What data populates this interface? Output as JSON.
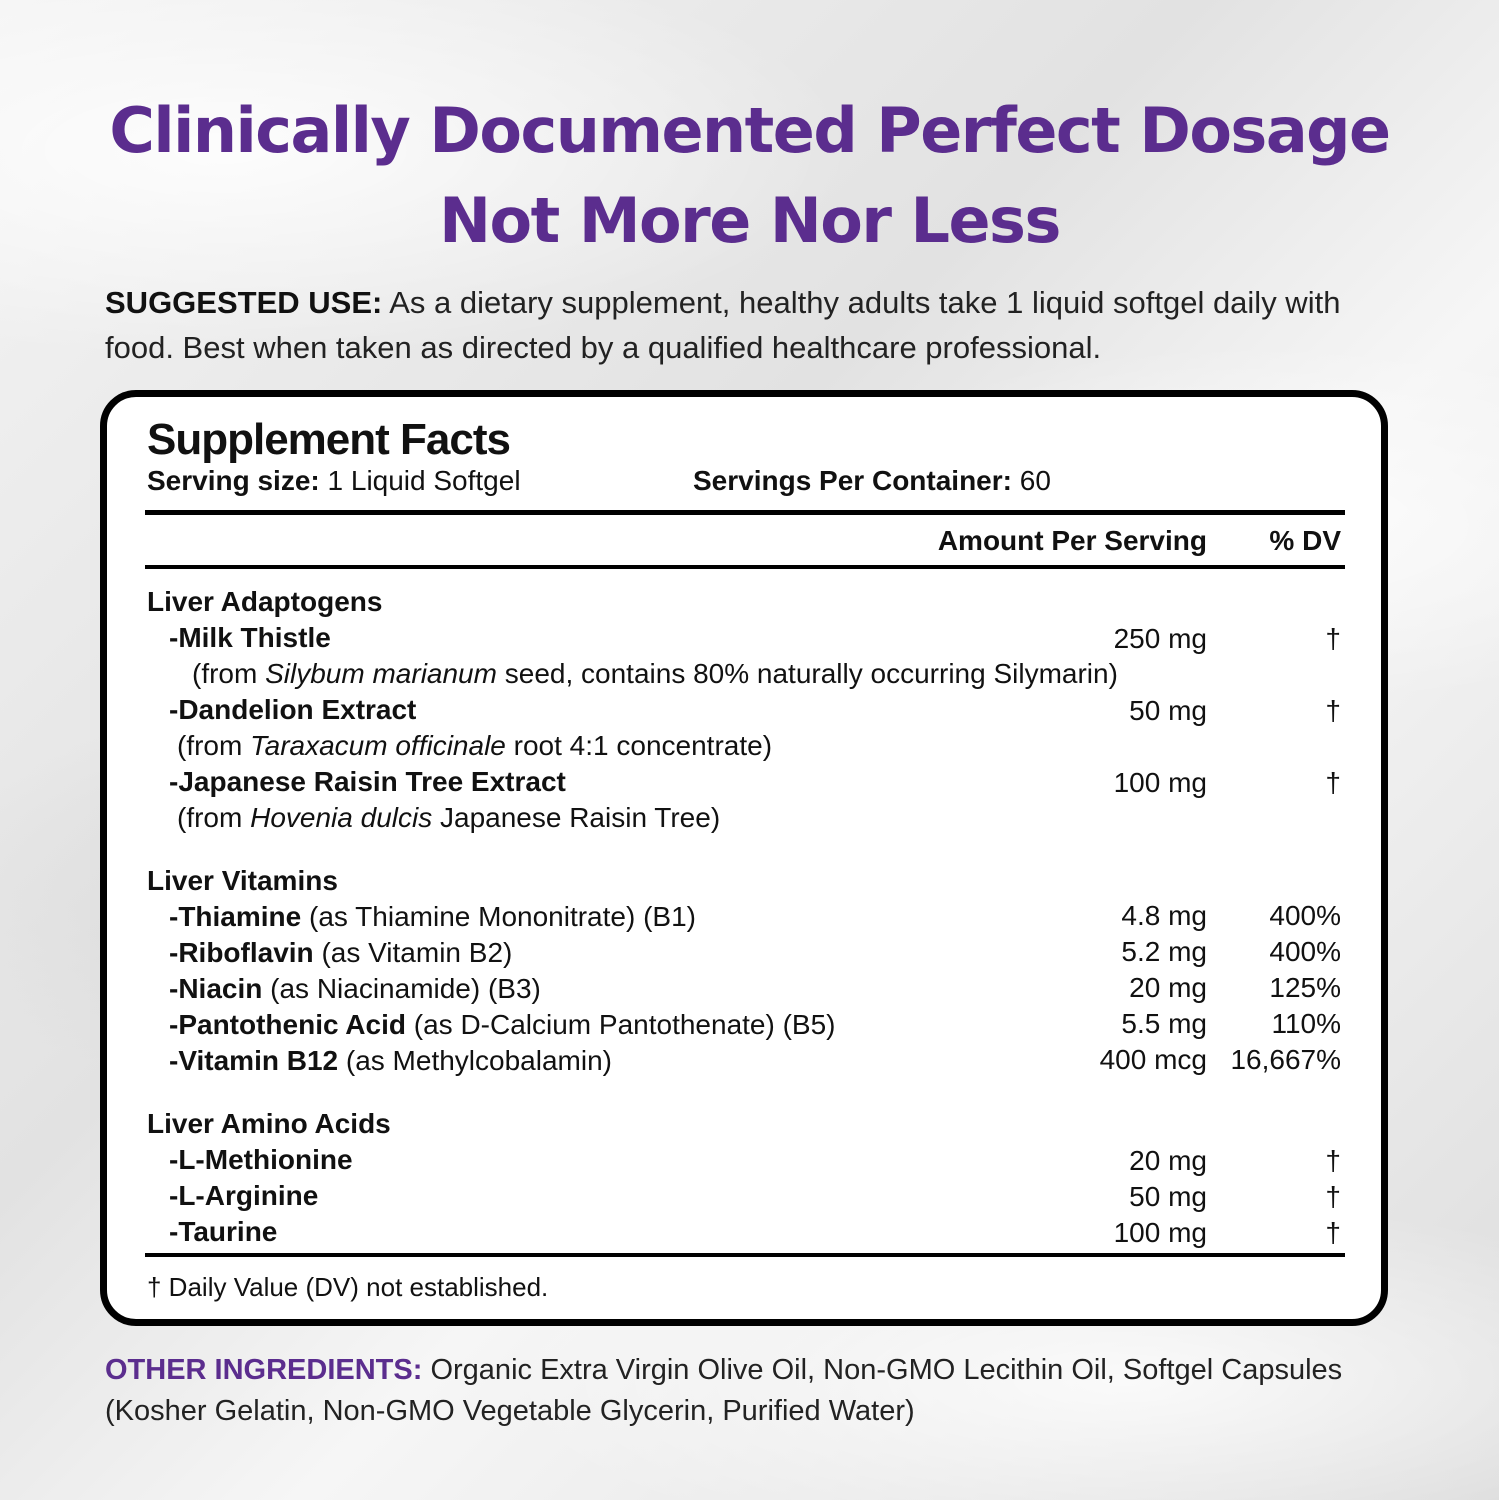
{
  "headline": {
    "line1": "Clinically Documented Perfect Dosage",
    "line2": "Not More Nor Less"
  },
  "suggested_use": {
    "label": "SUGGESTED USE:",
    "text": " As a dietary supplement, healthy adults take 1 liquid softgel daily with food. Best when taken as directed by a qualified healthcare professional."
  },
  "facts": {
    "title": "Supplement Facts",
    "serving_size_label": "Serving size:",
    "serving_size_value": " 1 Liquid Softgel",
    "servings_label": "Servings Per Container:",
    "servings_value": " 60",
    "amount_header": "Amount Per Serving",
    "dv_header": "% DV",
    "groups": [
      {
        "name": "Liver Adaptogens",
        "items": [
          {
            "name": "-Milk Thistle",
            "amount": "250 mg",
            "dv": "†",
            "source_pre": "(from ",
            "source_italic": "Silybum marianum",
            "source_post": " seed, contains 80% naturally occurring Silymarin)"
          },
          {
            "name": "-Dandelion Extract",
            "amount": "50 mg",
            "dv": "†",
            "source_pre": "(from ",
            "source_italic": "Taraxacum officinale",
            "source_post": " root 4:1 concentrate)"
          },
          {
            "name": "-Japanese Raisin Tree Extract",
            "amount": "100 mg",
            "dv": "†",
            "source_pre": "(from ",
            "source_italic": "Hovenia dulcis",
            "source_post": " Japanese Raisin Tree)"
          }
        ]
      },
      {
        "name": "Liver Vitamins",
        "items": [
          {
            "name": "-Thiamine",
            "detail": " (as Thiamine Mononitrate) (B1)",
            "amount": "4.8 mg",
            "dv": "400%"
          },
          {
            "name": "-Riboflavin",
            "detail": " (as Vitamin B2)",
            "amount": "5.2 mg",
            "dv": "400%"
          },
          {
            "name": "-Niacin",
            "detail": " (as Niacinamide) (B3)",
            "amount": "20 mg",
            "dv": "125%"
          },
          {
            "name": "-Pantothenic Acid",
            "detail": " (as D-Calcium Pantothenate) (B5)",
            "amount": "5.5 mg",
            "dv": "110%"
          },
          {
            "name": "-Vitamin B12",
            "detail": " (as Methylcobalamin)",
            "amount": "400 mcg",
            "dv": "16,667%"
          }
        ]
      },
      {
        "name": "Liver Amino Acids",
        "items": [
          {
            "name": "-L-Methionine",
            "amount": "20 mg",
            "dv": "†"
          },
          {
            "name": "-L-Arginine",
            "amount": "50 mg",
            "dv": "†"
          },
          {
            "name": "-Taurine",
            "amount": "100 mg",
            "dv": "†"
          }
        ]
      }
    ],
    "footnote": "† Daily Value (DV) not established."
  },
  "other_ingredients": {
    "label": "OTHER INGREDIENTS:",
    "text": " Organic Extra Virgin Olive Oil, Non-GMO Lecithin Oil, Softgel Capsules (Kosher Gelatin, Non-GMO Vegetable Glycerin, Purified Water)"
  }
}
